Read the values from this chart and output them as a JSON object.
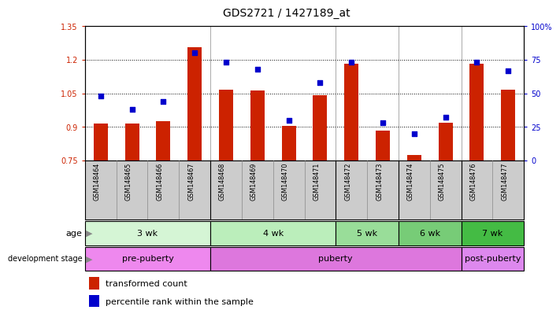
{
  "title": "GDS2721 / 1427189_at",
  "samples": [
    "GSM148464",
    "GSM148465",
    "GSM148466",
    "GSM148467",
    "GSM148468",
    "GSM148469",
    "GSM148470",
    "GSM148471",
    "GSM148472",
    "GSM148473",
    "GSM148474",
    "GSM148475",
    "GSM148476",
    "GSM148477"
  ],
  "bar_values": [
    0.915,
    0.915,
    0.925,
    1.255,
    1.065,
    1.062,
    0.905,
    1.042,
    1.182,
    0.885,
    0.775,
    0.92,
    1.182,
    1.065
  ],
  "percentile_values": [
    48,
    38,
    44,
    80,
    73,
    68,
    30,
    58,
    73,
    28,
    20,
    32,
    73,
    67
  ],
  "ylim_left": [
    0.75,
    1.35
  ],
  "ylim_right": [
    0,
    100
  ],
  "yticks_left": [
    0.75,
    0.9,
    1.05,
    1.2,
    1.35
  ],
  "yticks_right": [
    0,
    25,
    50,
    75,
    100
  ],
  "ytick_labels_left": [
    "0.75",
    "0.9",
    "1.05",
    "1.2",
    "1.35"
  ],
  "ytick_labels_right": [
    "0",
    "25",
    "50",
    "75",
    "100%"
  ],
  "bar_color": "#cc2200",
  "dot_color": "#0000cc",
  "age_groups": [
    {
      "label": "3 wk",
      "samples": [
        0,
        1,
        2,
        3
      ],
      "color": "#d5f5d5"
    },
    {
      "label": "4 wk",
      "samples": [
        4,
        5,
        6,
        7
      ],
      "color": "#bbeebb"
    },
    {
      "label": "5 wk",
      "samples": [
        8,
        9
      ],
      "color": "#99dd99"
    },
    {
      "label": "6 wk",
      "samples": [
        10,
        11
      ],
      "color": "#77cc77"
    },
    {
      "label": "7 wk",
      "samples": [
        12,
        13
      ],
      "color": "#44bb44"
    }
  ],
  "dev_groups": [
    {
      "label": "pre-puberty",
      "samples": [
        0,
        1,
        2,
        3
      ],
      "color": "#ee88ee"
    },
    {
      "label": "puberty",
      "samples": [
        4,
        5,
        6,
        7,
        8,
        9,
        10,
        11
      ],
      "color": "#dd77dd"
    },
    {
      "label": "post-puberty",
      "samples": [
        12,
        13
      ],
      "color": "#dd88ee"
    }
  ],
  "legend_bar_label": "transformed count",
  "legend_dot_label": "percentile rank within the sample",
  "row_label_age": "age",
  "row_label_dev": "development stage",
  "title_fontsize": 10,
  "tick_fontsize": 7,
  "label_fontsize": 8,
  "annot_fontsize": 8,
  "xlabel_fontsize": 6,
  "background_color": "#ffffff",
  "gridline_y": [
    0.9,
    1.05,
    1.2
  ],
  "tick_bg_color": "#cccccc",
  "tick_sep_color": "#888888"
}
